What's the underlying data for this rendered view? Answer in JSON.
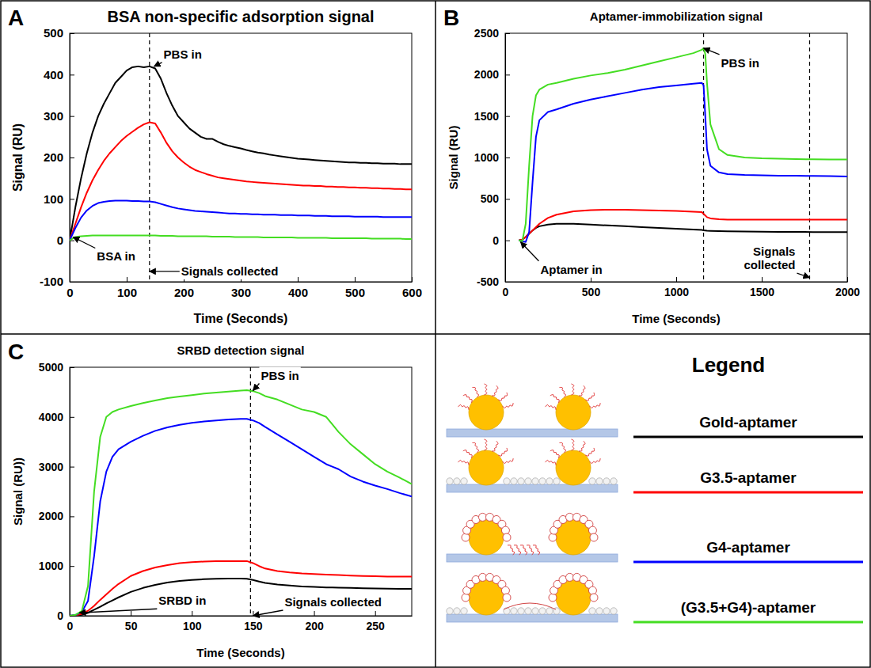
{
  "chart_data": [
    {
      "type": "line",
      "panel": "A",
      "title": "BSA non-specific adsorption signal",
      "xlabel": "Time (Seconds)",
      "ylabel": "Signal (RU)",
      "xlim": [
        0,
        600
      ],
      "xticks": [
        0,
        100,
        200,
        300,
        400,
        500,
        600
      ],
      "ylim": [
        -100,
        500
      ],
      "yticks": [
        -100,
        0,
        100,
        200,
        300,
        400,
        500
      ],
      "x": [
        0,
        10,
        20,
        30,
        40,
        50,
        60,
        70,
        80,
        90,
        100,
        110,
        120,
        130,
        140,
        150,
        160,
        170,
        180,
        190,
        200,
        210,
        220,
        230,
        240,
        250,
        260,
        270,
        280,
        290,
        300,
        310,
        320,
        330,
        340,
        350,
        360,
        370,
        380,
        390,
        400,
        410,
        420,
        430,
        440,
        450,
        460,
        470,
        480,
        490,
        500,
        510,
        520,
        530,
        540,
        550,
        560,
        570,
        580,
        590,
        600
      ],
      "series": [
        {
          "name": "Gold-aptamer",
          "color": "#000000",
          "values": [
            0,
            80,
            150,
            210,
            260,
            300,
            330,
            355,
            380,
            395,
            410,
            418,
            420,
            418,
            420,
            415,
            390,
            355,
            325,
            300,
            285,
            270,
            260,
            250,
            245,
            245,
            238,
            232,
            228,
            225,
            222,
            218,
            215,
            212,
            210,
            207,
            205,
            203,
            201,
            199,
            197,
            196,
            195,
            194,
            193,
            192,
            191,
            190,
            189,
            188,
            188,
            187,
            187,
            186,
            186,
            185,
            185,
            185,
            184,
            184,
            184
          ]
        },
        {
          "name": "G3.5-aptamer",
          "color": "#ff0000",
          "values": [
            0,
            40,
            80,
            115,
            145,
            170,
            192,
            210,
            225,
            240,
            252,
            262,
            272,
            280,
            285,
            282,
            260,
            235,
            215,
            200,
            188,
            178,
            170,
            165,
            160,
            156,
            152,
            150,
            148,
            146,
            144,
            142,
            141,
            140,
            139,
            138,
            137,
            136,
            135,
            134,
            133,
            132,
            132,
            131,
            131,
            130,
            130,
            129,
            129,
            128,
            128,
            127,
            127,
            126,
            126,
            125,
            125,
            124,
            124,
            123,
            123
          ]
        },
        {
          "name": "G4-aptamer",
          "color": "#0000ff",
          "values": [
            0,
            30,
            55,
            72,
            83,
            90,
            93,
            95,
            96,
            96,
            96,
            95,
            95,
            94,
            94,
            92,
            88,
            84,
            80,
            77,
            75,
            73,
            71,
            70,
            69,
            68,
            67,
            66,
            65,
            65,
            64,
            64,
            63,
            63,
            62,
            62,
            62,
            61,
            61,
            61,
            60,
            60,
            60,
            59,
            59,
            59,
            58,
            58,
            58,
            58,
            57,
            57,
            57,
            57,
            57,
            56,
            56,
            56,
            56,
            56,
            56
          ]
        },
        {
          "name": "(G3.5+G4)-aptamer",
          "color": "#44dd22",
          "values": [
            0,
            8,
            10,
            11,
            12,
            12,
            12,
            12,
            12,
            12,
            12,
            12,
            12,
            12,
            12,
            12,
            11,
            11,
            11,
            10,
            10,
            10,
            10,
            10,
            10,
            9,
            9,
            9,
            9,
            8,
            8,
            8,
            8,
            8,
            7,
            7,
            7,
            7,
            7,
            7,
            6,
            6,
            6,
            6,
            6,
            6,
            5,
            5,
            5,
            5,
            5,
            5,
            5,
            4,
            4,
            4,
            4,
            4,
            4,
            3,
            3
          ]
        }
      ],
      "vlines": [
        140
      ],
      "annotations": [
        {
          "text": "PBS in",
          "x": 148,
          "y": 420
        },
        {
          "text": "BSA in",
          "x": 6,
          "y": 8
        },
        {
          "text": "Signals collected",
          "x": 140,
          "y": -75
        }
      ]
    },
    {
      "type": "line",
      "panel": "B",
      "title": "Aptamer-immobilization signal",
      "xlabel": "Time (Seconds)",
      "ylabel": "Signal (RU)",
      "xlim": [
        0,
        2000
      ],
      "xticks": [
        0,
        500,
        1000,
        1500,
        2000
      ],
      "ylim": [
        -500,
        2500
      ],
      "yticks": [
        -500,
        0,
        500,
        1000,
        1500,
        2000,
        2500
      ],
      "x": [
        80,
        100,
        120,
        140,
        160,
        180,
        200,
        250,
        300,
        400,
        500,
        600,
        700,
        800,
        900,
        1000,
        1100,
        1150,
        1160,
        1170,
        1180,
        1200,
        1250,
        1300,
        1400,
        1500,
        1600,
        1700,
        1800,
        1900,
        2000
      ],
      "series": [
        {
          "color": "#000000",
          "values": [
            0,
            10,
            40,
            80,
            120,
            150,
            170,
            190,
            200,
            200,
            190,
            180,
            170,
            160,
            150,
            140,
            130,
            125,
            120,
            118,
            116,
            115,
            112,
            110,
            107,
            105,
            103,
            102,
            100,
            100,
            100
          ]
        },
        {
          "color": "#ff0000",
          "values": [
            0,
            10,
            40,
            80,
            120,
            160,
            200,
            270,
            310,
            350,
            365,
            370,
            370,
            365,
            360,
            355,
            345,
            340,
            320,
            300,
            280,
            265,
            255,
            250,
            250,
            250,
            250,
            250,
            250,
            250,
            250
          ]
        },
        {
          "color": "#0000ff",
          "values": [
            0,
            -10,
            -20,
            100,
            700,
            1250,
            1450,
            1550,
            1580,
            1650,
            1700,
            1740,
            1780,
            1820,
            1850,
            1870,
            1890,
            1900,
            1870,
            1500,
            1100,
            900,
            820,
            800,
            790,
            785,
            780,
            780,
            778,
            775,
            770
          ]
        },
        {
          "color": "#44dd22",
          "values": [
            0,
            -10,
            200,
            900,
            1500,
            1750,
            1820,
            1880,
            1900,
            1950,
            1990,
            2020,
            2060,
            2110,
            2160,
            2210,
            2260,
            2300,
            2320,
            2250,
            1900,
            1400,
            1100,
            1030,
            1000,
            990,
            985,
            980,
            978,
            975,
            975
          ]
        }
      ],
      "vlines": [
        1160,
        1780
      ],
      "annotations": [
        {
          "text": "PBS in",
          "x": 1160,
          "y": 2320
        },
        {
          "text": "Aptamer in",
          "x": 90,
          "y": -20
        },
        {
          "text": "Signals collected",
          "x": 1780,
          "y": -450
        }
      ]
    },
    {
      "type": "line",
      "panel": "C",
      "title": "SRBD detection signal",
      "xlabel": "Time (Seconds)",
      "ylabel": "Signal (RU))",
      "xlim": [
        0,
        280
      ],
      "xticks": [
        0,
        50,
        100,
        150,
        200,
        250
      ],
      "ylim": [
        0,
        5000
      ],
      "yticks": [
        0,
        1000,
        2000,
        3000,
        4000,
        5000
      ],
      "x": [
        0,
        5,
        10,
        15,
        20,
        25,
        30,
        35,
        40,
        50,
        60,
        70,
        80,
        90,
        100,
        110,
        120,
        130,
        140,
        145,
        150,
        155,
        160,
        170,
        180,
        190,
        200,
        210,
        215,
        220,
        230,
        240,
        250,
        260,
        270,
        280
      ],
      "series": [
        {
          "color": "#000000",
          "values": [
            0,
            5,
            20,
            60,
            120,
            180,
            250,
            310,
            370,
            480,
            560,
            620,
            670,
            700,
            720,
            735,
            745,
            750,
            750,
            745,
            720,
            690,
            660,
            630,
            610,
            590,
            580,
            570,
            568,
            565,
            560,
            555,
            550,
            545,
            540,
            540
          ]
        },
        {
          "color": "#ff0000",
          "values": [
            0,
            10,
            40,
            100,
            200,
            320,
            430,
            540,
            640,
            800,
            900,
            970,
            1020,
            1060,
            1080,
            1090,
            1100,
            1100,
            1100,
            1100,
            1060,
            1000,
            950,
            900,
            870,
            850,
            840,
            830,
            825,
            820,
            810,
            800,
            795,
            790,
            790,
            790
          ]
        },
        {
          "color": "#0000ff",
          "values": [
            0,
            20,
            80,
            300,
            1200,
            2300,
            2900,
            3200,
            3350,
            3500,
            3620,
            3720,
            3790,
            3840,
            3880,
            3910,
            3930,
            3950,
            3960,
            3960,
            3930,
            3880,
            3800,
            3650,
            3500,
            3350,
            3200,
            3050,
            3000,
            2950,
            2800,
            2700,
            2620,
            2550,
            2470,
            2400
          ]
        },
        {
          "color": "#44dd22",
          "values": [
            0,
            20,
            100,
            600,
            2500,
            3600,
            4000,
            4100,
            4150,
            4220,
            4280,
            4330,
            4380,
            4410,
            4440,
            4470,
            4490,
            4510,
            4530,
            4540,
            4520,
            4480,
            4420,
            4350,
            4250,
            4150,
            4100,
            4000,
            3850,
            3700,
            3450,
            3250,
            3050,
            2900,
            2780,
            2650
          ]
        }
      ],
      "vlines": [
        148
      ],
      "annotations": [
        {
          "text": "PBS in",
          "x": 150,
          "y": 4530
        },
        {
          "text": "SRBD in",
          "x": 8,
          "y": 60
        },
        {
          "text": "Signals collected",
          "x": 150,
          "y": 0
        }
      ]
    }
  ],
  "legend_panel": {
    "title": "Legend"
  }
}
